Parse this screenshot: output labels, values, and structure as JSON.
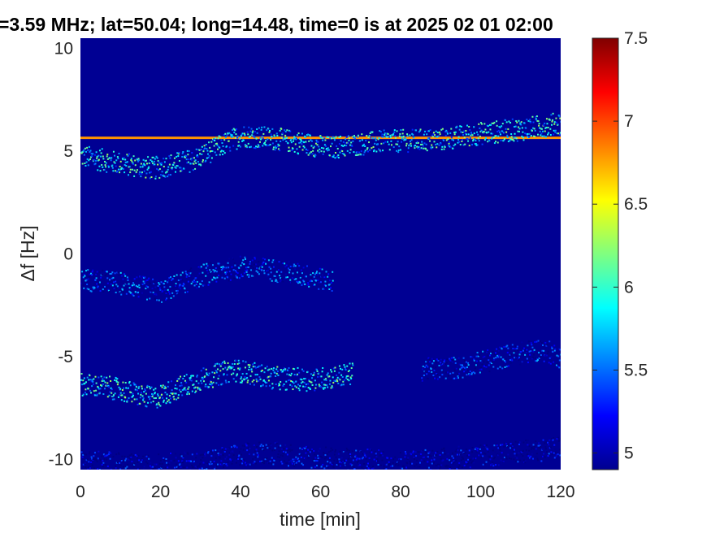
{
  "chart_data": {
    "type": "heatmap",
    "title": "=3.59 MHz;  lat=50.04; long=14.48, time=0 is at 2025 02 01 02:00",
    "xlabel": "time [min]",
    "ylabel": "Δf [Hz]",
    "xlim": [
      0,
      120
    ],
    "ylim": [
      -10.5,
      10.5
    ],
    "xticks": [
      "0",
      "20",
      "40",
      "60",
      "80",
      "100",
      "120"
    ],
    "yticks": [
      "-10",
      "-5",
      "0",
      "5",
      "10"
    ],
    "colorbar": {
      "colormap": "jet",
      "range": [
        4.9,
        7.5
      ],
      "ticks": [
        "5",
        "5.5",
        "6",
        "6.5",
        "7",
        "7.5"
      ]
    },
    "background_level": 4.95,
    "features": [
      {
        "kind": "constant_line",
        "frequency": 5.65,
        "t_start": 0,
        "t_end": 120,
        "level": 6.8
      },
      {
        "kind": "trace",
        "points": [
          [
            0,
            4.8
          ],
          [
            8,
            4.5
          ],
          [
            18,
            4.2
          ],
          [
            28,
            4.6
          ],
          [
            40,
            5.8
          ],
          [
            50,
            5.6
          ],
          [
            62,
            5.2
          ],
          [
            75,
            5.5
          ],
          [
            90,
            5.6
          ],
          [
            100,
            5.9
          ],
          [
            110,
            6.1
          ],
          [
            120,
            6.4
          ]
        ],
        "level": 5.9
      },
      {
        "kind": "trace",
        "points": [
          [
            0,
            -1.2
          ],
          [
            10,
            -1.4
          ],
          [
            20,
            -1.8
          ],
          [
            30,
            -1.0
          ],
          [
            40,
            -0.6
          ],
          [
            50,
            -0.8
          ],
          [
            63,
            -1.3
          ]
        ],
        "level": 5.4
      },
      {
        "kind": "trace",
        "points": [
          [
            0,
            -6.3
          ],
          [
            8,
            -6.5
          ],
          [
            18,
            -7.0
          ],
          [
            28,
            -6.2
          ],
          [
            38,
            -5.6
          ],
          [
            48,
            -6.0
          ],
          [
            58,
            -6.1
          ],
          [
            68,
            -5.8
          ]
        ],
        "level": 5.9
      },
      {
        "kind": "trace",
        "points": [
          [
            85,
            -5.6
          ],
          [
            95,
            -5.5
          ],
          [
            105,
            -5.0
          ],
          [
            115,
            -4.6
          ],
          [
            120,
            -5.0
          ]
        ],
        "level": 5.3
      },
      {
        "kind": "trace",
        "points": [
          [
            0,
            -10.0
          ],
          [
            15,
            -10.3
          ],
          [
            30,
            -10.1
          ],
          [
            45,
            -9.6
          ],
          [
            60,
            -9.9
          ],
          [
            80,
            -10.1
          ],
          [
            100,
            -9.8
          ],
          [
            120,
            -9.4
          ]
        ],
        "level": 5.1
      }
    ]
  }
}
